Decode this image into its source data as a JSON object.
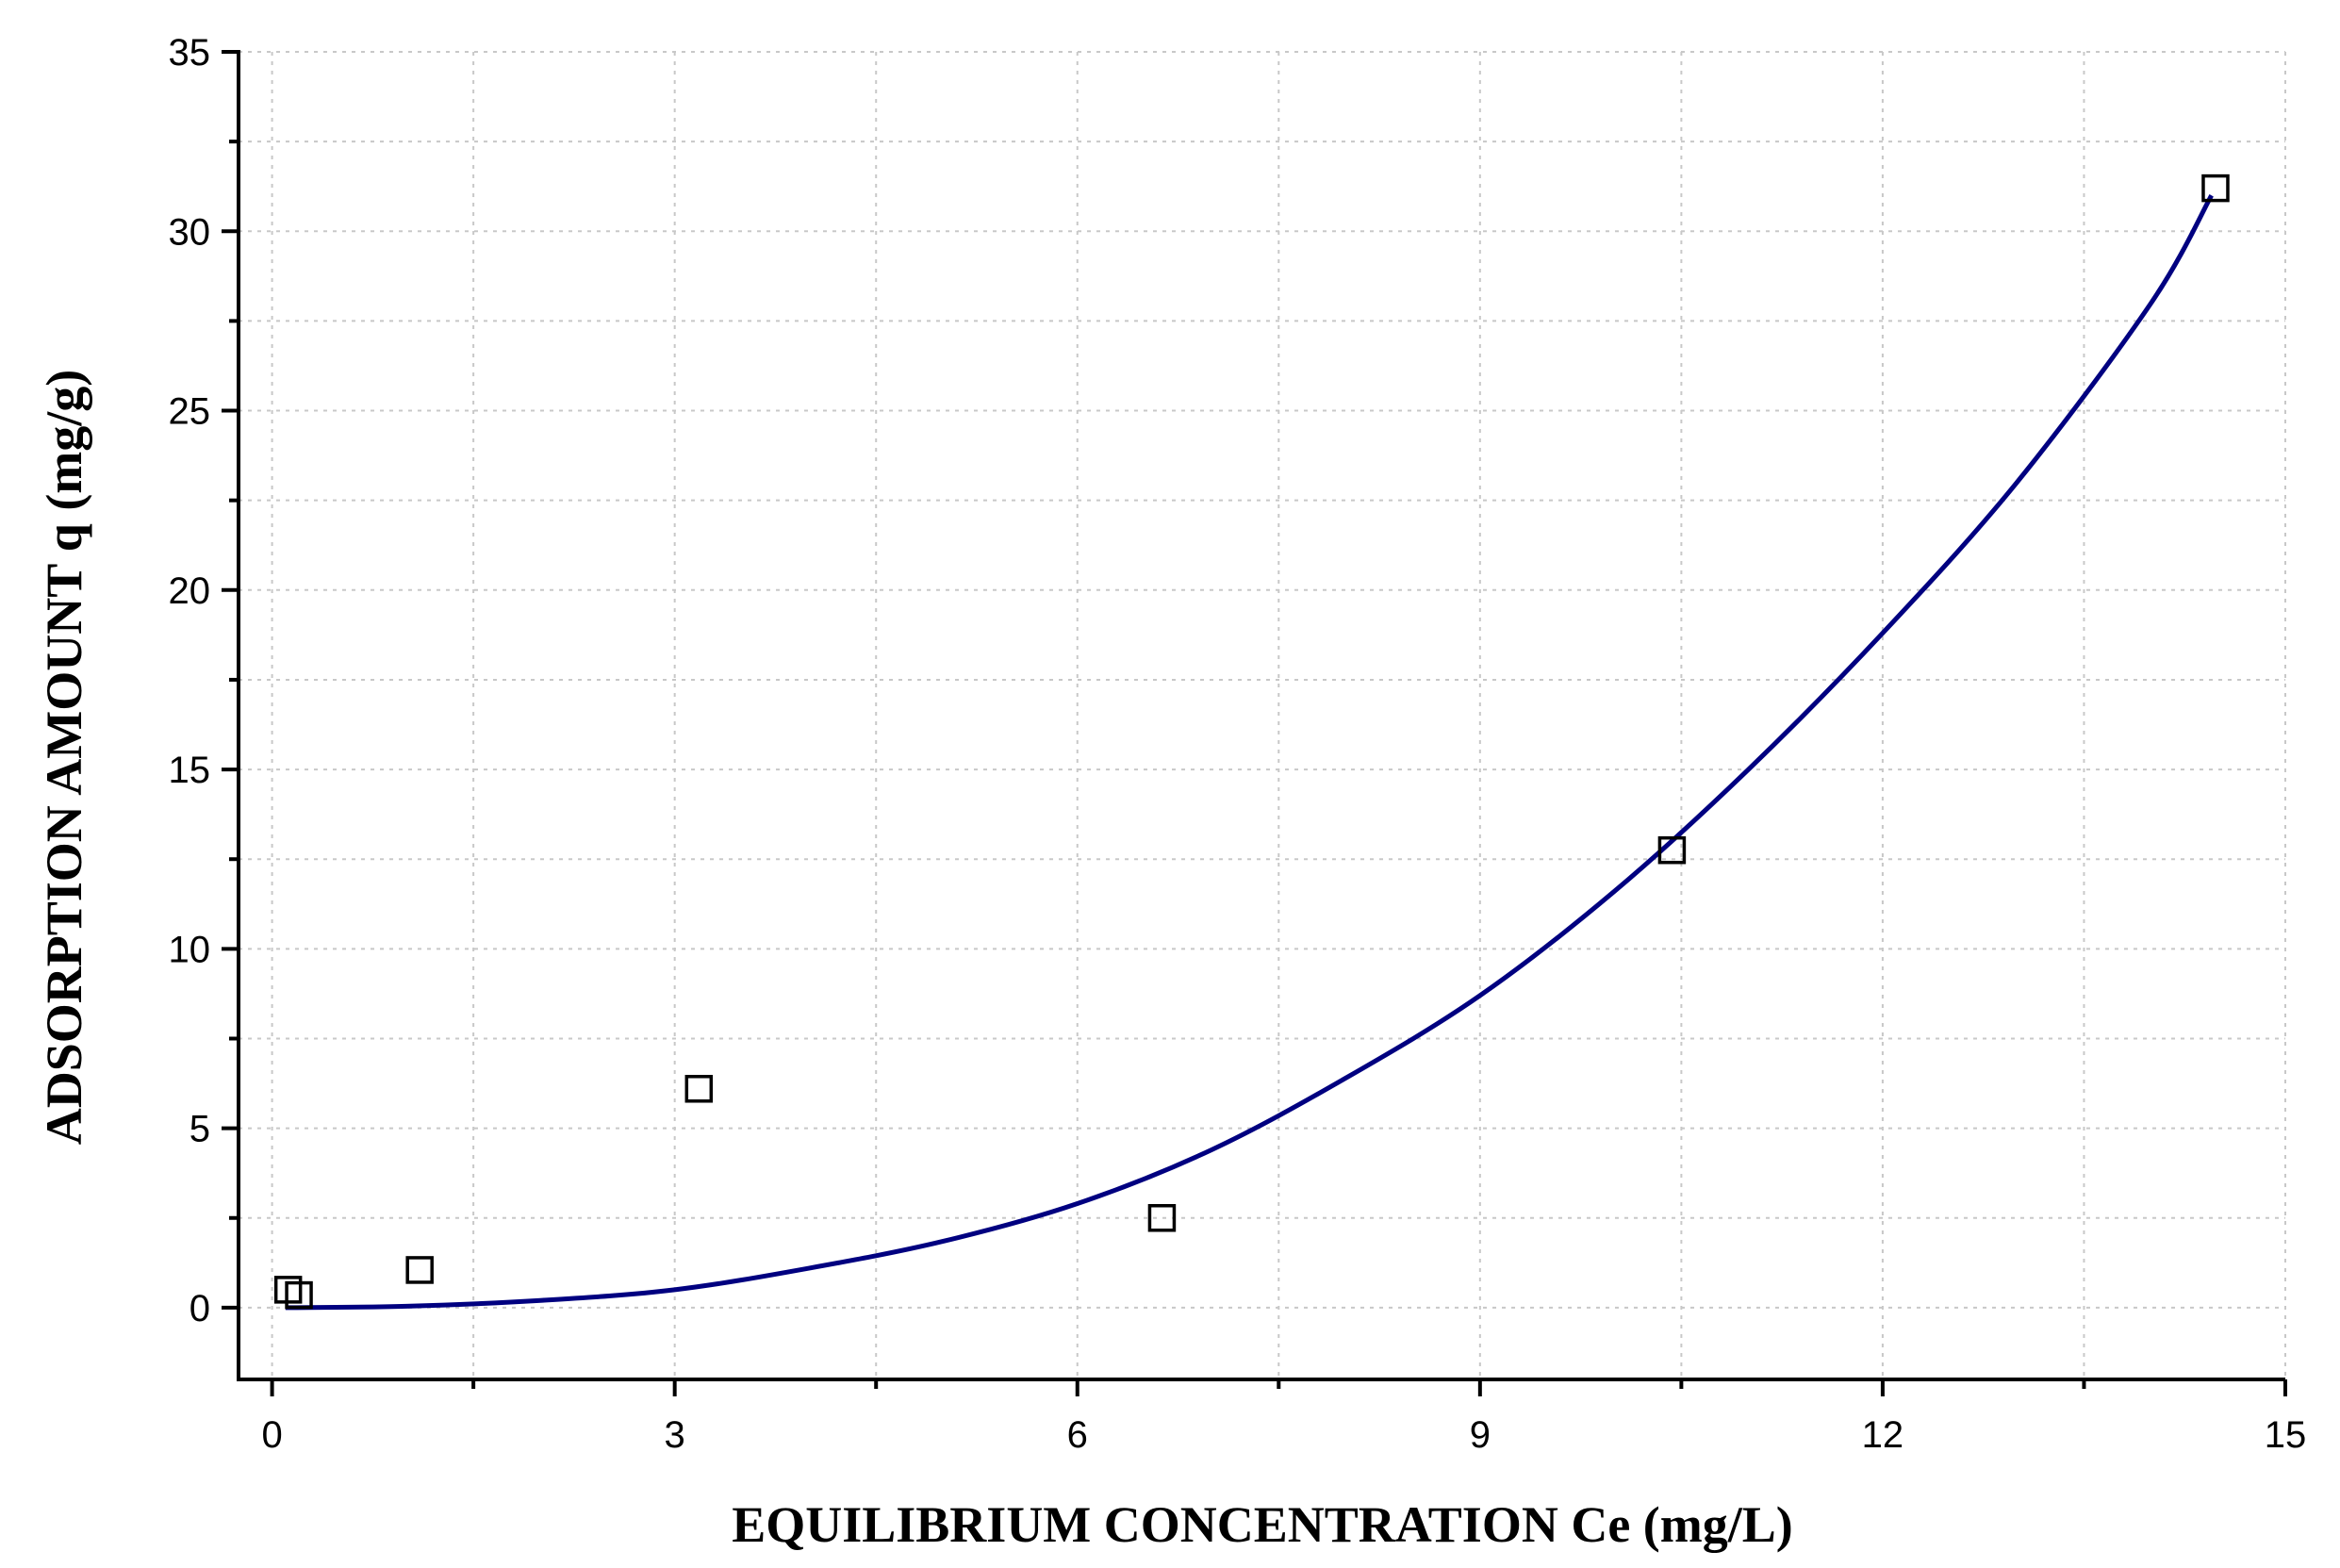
{
  "chart_data": {
    "type": "scatter",
    "title": "",
    "xlabel": "EQUILIBRIUM CONCENTRATION Ce (mg/L)",
    "ylabel": "ADSORPTION AMOUNT q (mg/g)",
    "xlim": [
      -0.25,
      15
    ],
    "ylim": [
      -2,
      35
    ],
    "xticks": [
      0,
      3,
      6,
      9,
      12,
      15
    ],
    "yticks": [
      0,
      5,
      10,
      15,
      20,
      25,
      30,
      35
    ],
    "xtick_labels": [
      "0",
      "3",
      "6",
      "9",
      "12",
      "15"
    ],
    "ytick_labels": [
      "0",
      "5",
      "10",
      "15",
      "20",
      "25",
      "30",
      "35"
    ],
    "grid": true,
    "series": [
      {
        "kind": "points",
        "marker": "open-square",
        "color": "#000000",
        "points": [
          {
            "x": 0.12,
            "y": 0.5
          },
          {
            "x": 0.2,
            "y": 0.35
          },
          {
            "x": 1.1,
            "y": 1.05
          },
          {
            "x": 3.18,
            "y": 6.1
          },
          {
            "x": 6.63,
            "y": 2.5
          },
          {
            "x": 10.43,
            "y": 12.75
          },
          {
            "x": 14.48,
            "y": 31.2
          }
        ]
      },
      {
        "kind": "fit-curve",
        "color": "#000080",
        "points": [
          {
            "x": 0.1,
            "y": 0.0
          },
          {
            "x": 1.0,
            "y": 0.04
          },
          {
            "x": 2.0,
            "y": 0.2
          },
          {
            "x": 3.0,
            "y": 0.5
          },
          {
            "x": 4.0,
            "y": 1.1
          },
          {
            "x": 5.0,
            "y": 1.85
          },
          {
            "x": 6.0,
            "y": 2.9
          },
          {
            "x": 7.0,
            "y": 4.4
          },
          {
            "x": 8.0,
            "y": 6.4
          },
          {
            "x": 9.0,
            "y": 8.7
          },
          {
            "x": 10.0,
            "y": 11.6
          },
          {
            "x": 11.0,
            "y": 15.0
          },
          {
            "x": 12.0,
            "y": 18.8
          },
          {
            "x": 13.0,
            "y": 23.0
          },
          {
            "x": 14.0,
            "y": 28.0
          },
          {
            "x": 14.45,
            "y": 31.0
          }
        ]
      }
    ]
  }
}
